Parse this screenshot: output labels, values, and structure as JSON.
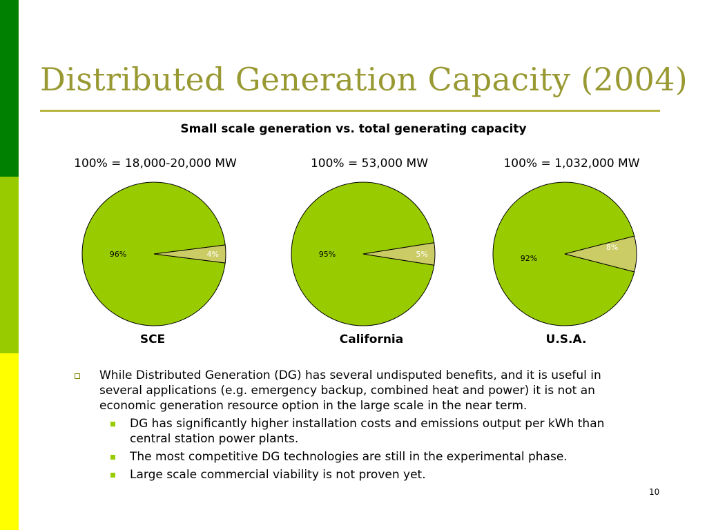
{
  "slide": {
    "title": "Distributed Generation Capacity (2004)",
    "subtitle": "Small scale generation vs. total generating capacity",
    "page_number": "10"
  },
  "colors": {
    "stripe_top": "#008000",
    "stripe_middle": "#99cc00",
    "stripe_bottom": "#ffff00",
    "title": "#999933",
    "pie_large": "#99cc00",
    "pie_small": "#cccc66"
  },
  "chart_data": [
    {
      "type": "pie",
      "title": "SCE",
      "subtitle": "100% = 18,000-20,000 MW",
      "values": [
        96,
        4
      ],
      "labels": [
        "96%",
        "4%"
      ]
    },
    {
      "type": "pie",
      "title": "California",
      "subtitle": "100% = 53,000 MW",
      "values": [
        95,
        5
      ],
      "labels": [
        "95%",
        "5%"
      ]
    },
    {
      "type": "pie",
      "title": "U.S.A.",
      "subtitle": "100% = 1,032,000 MW",
      "values": [
        92,
        8
      ],
      "labels": [
        "92%",
        "8%"
      ]
    }
  ],
  "bullets": {
    "main": "While Distributed Generation (DG) has several undisputed benefits, and it is useful in several applications (e.g. emergency backup, combined heat and power) it is not an economic generation resource option in the large scale in the near term.",
    "sub": [
      "DG has significantly higher installation costs and emissions output per kWh than central station power plants.",
      "The most competitive DG technologies are still in the experimental phase.",
      "Large scale commercial viability is not proven yet."
    ]
  }
}
